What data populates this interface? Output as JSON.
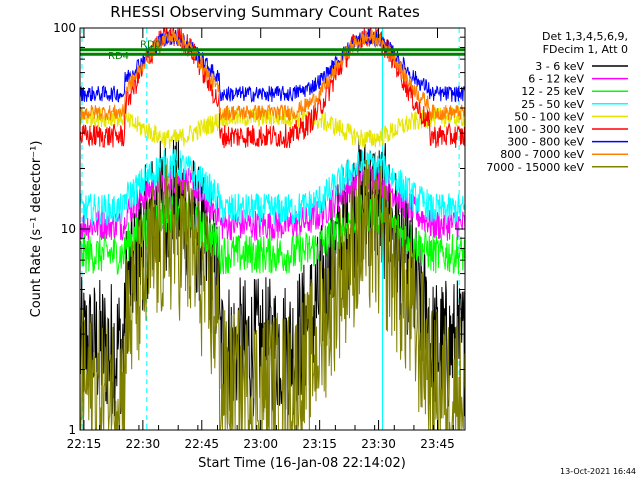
{
  "chart_data": {
    "type": "line",
    "title": "RHESSI Observing Summary Count Rates",
    "xlabel": "Start Time (16-Jan-08 22:14:02)",
    "ylabel": "Count Rate (s⁻¹ detector⁻¹)",
    "y_scale": "log",
    "ylim": [
      1,
      100
    ],
    "xlim_minutes": [
      0,
      98
    ],
    "x_ticks": [
      {
        "minute": 1,
        "label": "22:15"
      },
      {
        "minute": 16,
        "label": "22:30"
      },
      {
        "minute": 31,
        "label": "22:45"
      },
      {
        "minute": 46,
        "label": "23:00"
      },
      {
        "minute": 61,
        "label": "23:15"
      },
      {
        "minute": 76,
        "label": "23:30"
      },
      {
        "minute": 91,
        "label": "23:45"
      }
    ],
    "y_ticks": [
      {
        "value": 1,
        "label": "1"
      },
      {
        "value": 10,
        "label": "10"
      },
      {
        "value": 100,
        "label": "100"
      }
    ],
    "legend_header": [
      "Det 1,3,4,5,6,9,",
      "FDecim 1, Att 0"
    ],
    "legend_position": "right",
    "footer_date": "13-Oct-2021 16:44",
    "flag_labels": [
      "RD4",
      "RD0"
    ],
    "vertical_markers": [
      {
        "minute": 0.5,
        "style": "dashed",
        "color": "#00ffff"
      },
      {
        "minute": 17,
        "style": "dashed",
        "color": "#00ffff"
      },
      {
        "minute": 77,
        "style": "solid",
        "color": "#00ffff"
      },
      {
        "minute": 96.5,
        "style": "dashed",
        "color": "#00ffff"
      }
    ],
    "night_intervals": [
      [
        0,
        12
      ],
      [
        35,
        55
      ],
      [
        89,
        98
      ]
    ],
    "series": [
      {
        "name": "3 - 6 keV",
        "color": "#000000",
        "day_peak": 14,
        "night_level": 2.6,
        "noise": 0.35
      },
      {
        "name": "6 - 12 keV",
        "color": "#ff00ff",
        "day_peak": 18,
        "night_level": 10.5,
        "noise": 0.08
      },
      {
        "name": "12 - 25 keV",
        "color": "#00ff00",
        "day_peak": 12,
        "night_level": 7.5,
        "noise": 0.1
      },
      {
        "name": "25 - 50 keV",
        "color": "#00ffff",
        "day_peak": 21,
        "night_level": 12.5,
        "noise": 0.08
      },
      {
        "name": "50 - 100 keV",
        "color": "#e6e600",
        "day_peak": 28,
        "night_level": 36,
        "noise": 0.05
      },
      {
        "name": "100 - 300 keV",
        "color": "#ff0000",
        "day_peak": 92,
        "night_level": 29,
        "noise": 0.06
      },
      {
        "name": "300 - 800 keV",
        "color": "#0000ff",
        "day_peak": 90,
        "night_level": 47,
        "noise": 0.04
      },
      {
        "name": "800 - 7000 keV",
        "color": "#ff8000",
        "day_peak": 90,
        "night_level": 38,
        "noise": 0.04
      },
      {
        "name": "7000 - 15000 keV",
        "color": "#808000",
        "day_peak": 9,
        "night_level": 1.6,
        "noise": 0.4
      }
    ],
    "flag_lines": [
      {
        "label": "RD4",
        "color": "#008000"
      },
      {
        "label": "RD0",
        "color": "#008000"
      }
    ]
  }
}
